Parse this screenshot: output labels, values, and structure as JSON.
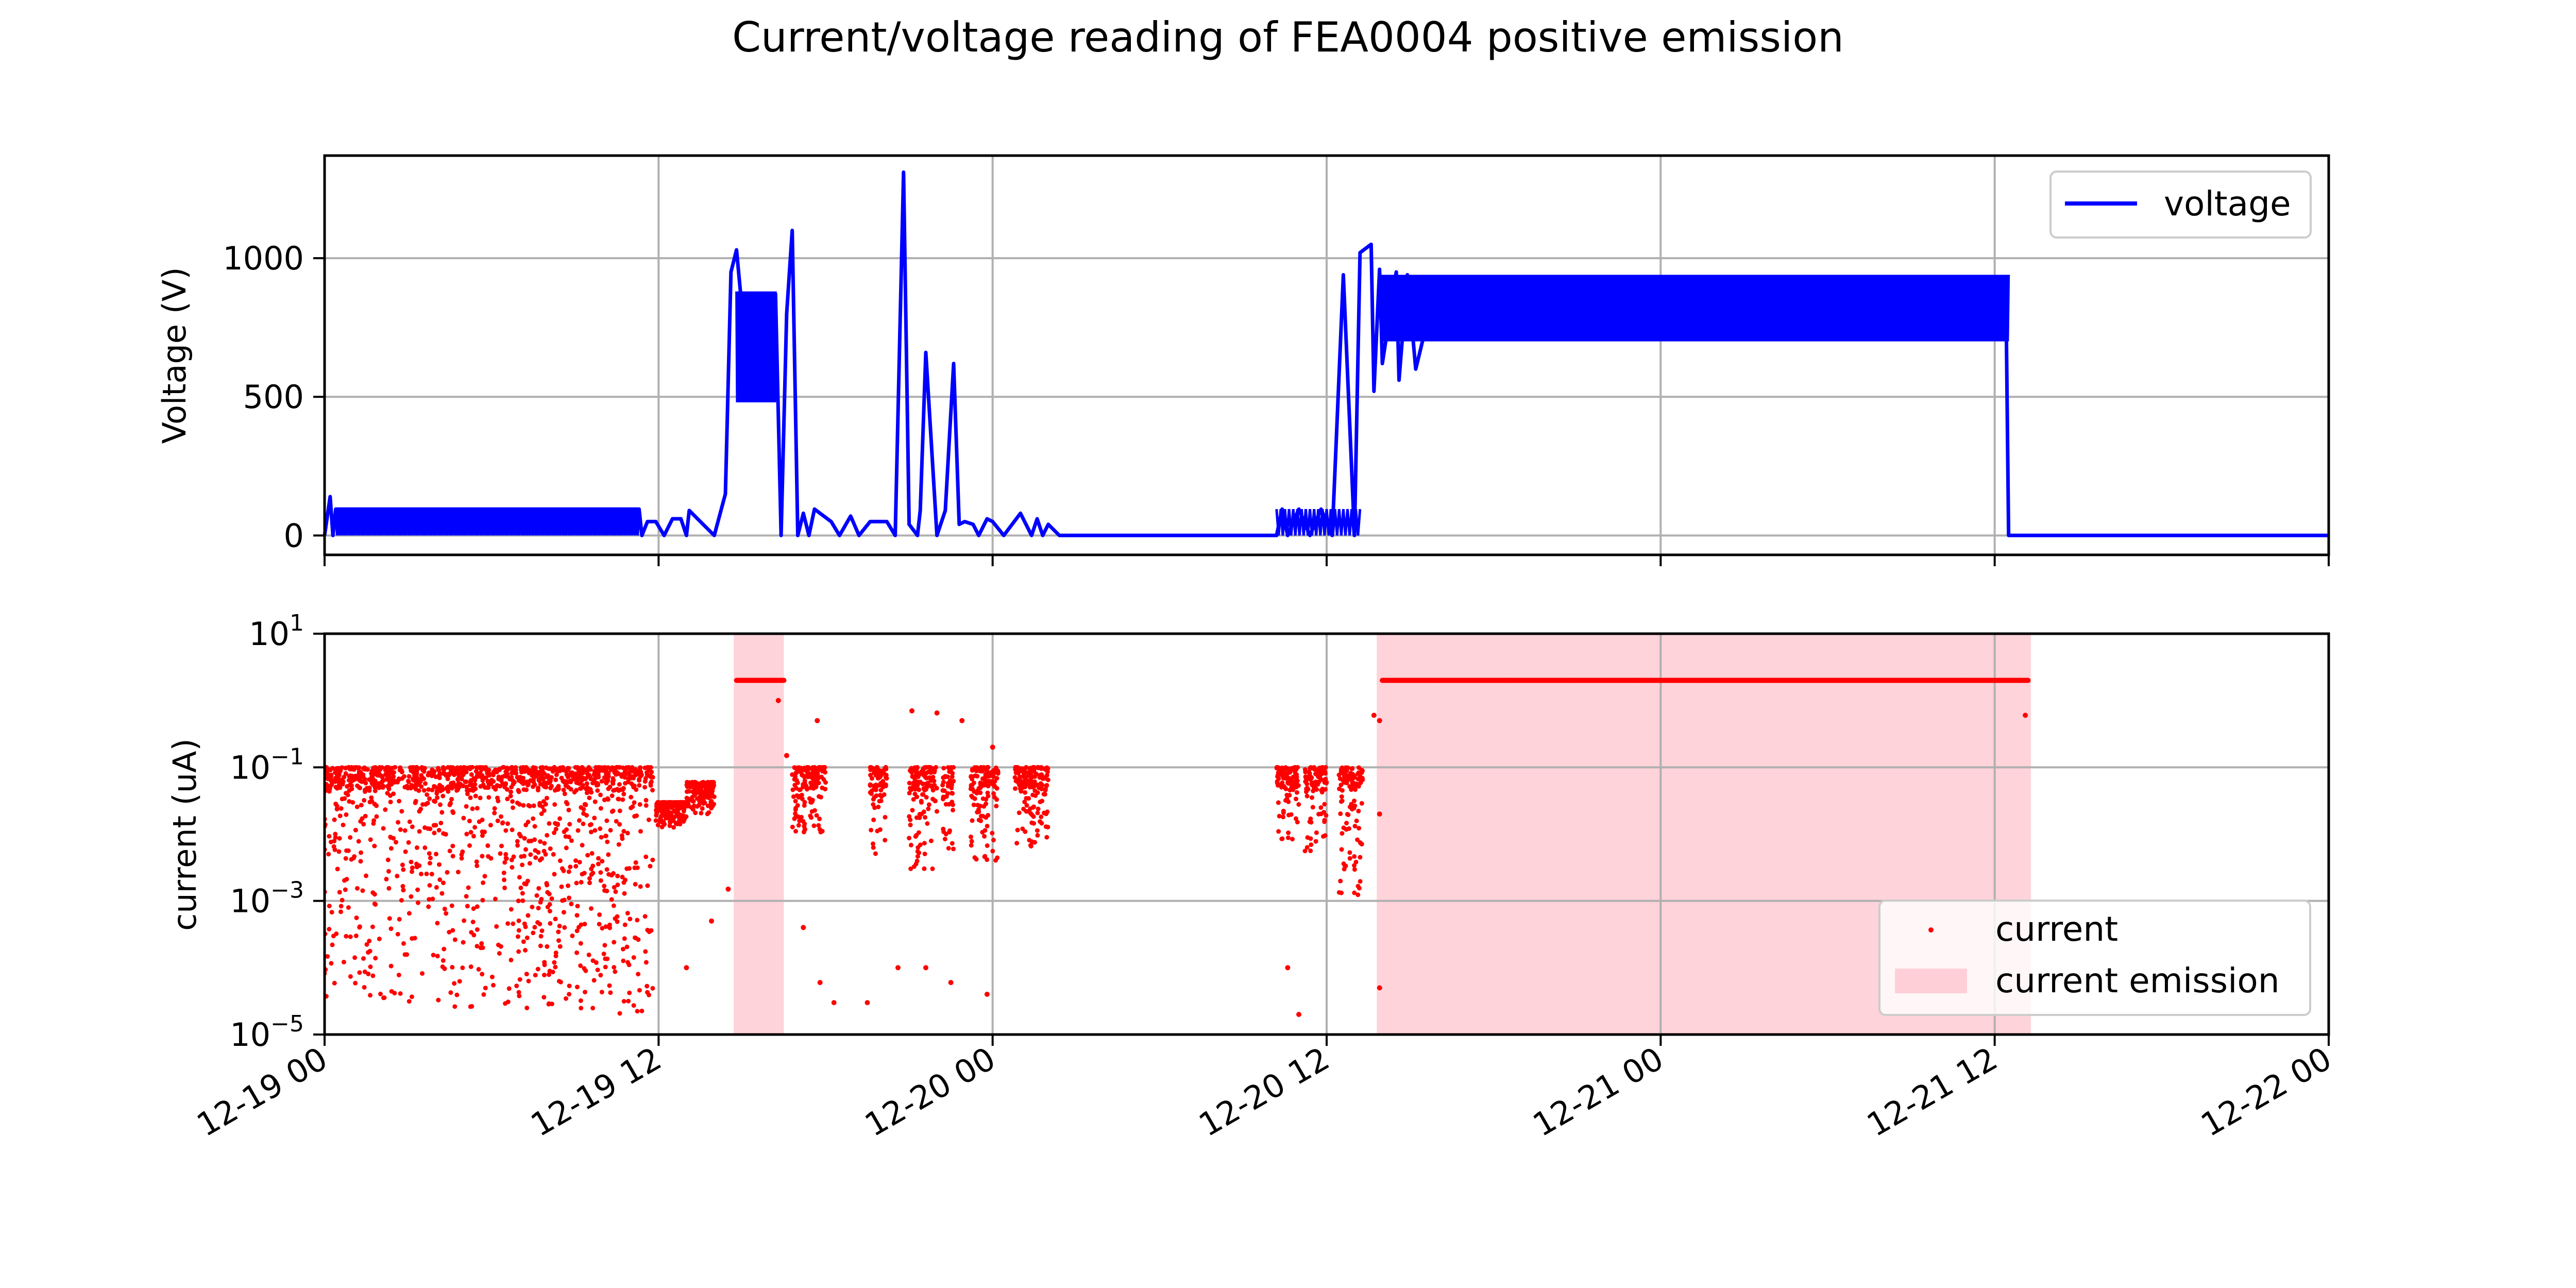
{
  "figure": {
    "title": "Current/voltage reading of FEA0004 positive emission"
  },
  "x_axis": {
    "tick_labels": [
      "12-19 00",
      "12-19 12",
      "12-20 00",
      "12-20 12",
      "12-21 00",
      "12-21 12",
      "12-22 00"
    ],
    "range": [
      "12-19 00",
      "12-22 00"
    ]
  },
  "chart_data": [
    {
      "type": "line",
      "panel": "top",
      "ylabel": "Voltage (V)",
      "ylim": [
        -70,
        1370
      ],
      "yticks": [
        0,
        500,
        1000
      ],
      "ytick_labels": [
        "0",
        "500",
        "1000"
      ],
      "grid": true,
      "legend_position": "upper-right",
      "series": [
        {
          "name": "voltage",
          "color": "#0000ff",
          "x_hours": [
            0,
            0.2,
            0.3,
            0.4,
            11.3,
            11.4,
            11.6,
            11.9,
            12.2,
            12.5,
            12.8,
            13.0,
            13.1,
            14.0,
            14.4,
            14.6,
            14.8,
            15.2,
            15.4,
            15.6,
            16.2,
            16.4,
            16.6,
            16.8,
            17.0,
            17.2,
            17.4,
            17.6,
            18.2,
            18.5,
            18.9,
            19.2,
            19.6,
            20.2,
            20.5,
            20.8,
            21.0,
            21.3,
            21.4,
            21.6,
            22.0,
            22.3,
            22.6,
            22.8,
            23.0,
            23.3,
            23.5,
            23.8,
            24.0,
            24.4,
            25.0,
            25.4,
            25.6,
            25.8,
            26.0,
            26.4,
            28.0,
            32.0,
            34.2,
            34.4,
            34.6,
            35.0,
            35.4,
            35.8,
            36.2,
            36.6,
            37.0,
            37.2,
            37.6,
            37.7,
            37.9,
            38.0,
            38.5,
            38.6,
            38.9,
            39.2,
            40.0,
            42.0,
            44.0,
            46.0,
            47.5,
            48.0,
            50.0,
            52.0,
            54.0,
            56.0,
            58.0,
            60.0,
            60.4,
            60.5,
            60.6,
            64.0,
            72.0
          ],
          "values": [
            0,
            140,
            0,
            95,
            95,
            0,
            50,
            50,
            0,
            60,
            60,
            0,
            90,
            0,
            150,
            950,
            1030,
            600,
            850,
            500,
            870,
            0,
            800,
            1100,
            0,
            80,
            0,
            95,
            50,
            0,
            70,
            0,
            50,
            50,
            0,
            1310,
            40,
            0,
            90,
            660,
            0,
            90,
            620,
            40,
            50,
            40,
            0,
            60,
            50,
            0,
            80,
            0,
            60,
            0,
            40,
            0,
            0,
            0,
            0,
            95,
            0,
            95,
            0,
            95,
            0,
            940,
            0,
            1020,
            1050,
            520,
            960,
            620,
            950,
            560,
            940,
            600,
            930,
            880,
            920,
            850,
            830,
            900,
            880,
            900,
            860,
            880,
            860,
            880,
            900,
            0,
            0,
            0,
            0
          ]
        }
      ]
    },
    {
      "type": "scatter",
      "panel": "bottom",
      "ylabel": "current (uA)",
      "yscale": "log",
      "ylim": [
        1e-05,
        10
      ],
      "yticks": [
        1e-05,
        0.001,
        0.1,
        10
      ],
      "ytick_labels": [
        {
          "base": "10",
          "exp": "−5"
        },
        {
          "base": "10",
          "exp": "−3"
        },
        {
          "base": "10",
          "exp": "−1"
        },
        {
          "base": "10",
          "exp": "1"
        }
      ],
      "grid": true,
      "legend_position": "lower-right",
      "series": [
        {
          "name": "current",
          "color": "#ff0000",
          "clusters": [
            {
              "x": [
                0.0,
                11.4
              ],
              "y_high": 0.1,
              "y_low": 2e-05
            },
            {
              "x": [
                11.5,
                11.8
              ],
              "y_high": 0.1,
              "y_low": 2e-05
            },
            {
              "x": [
                11.9,
                13.0
              ],
              "y_high": 0.03,
              "y_low": 0.012
            },
            {
              "x": [
                13.0,
                14.0
              ],
              "y_high": 0.06,
              "y_low": 0.02
            },
            {
              "x": [
                16.8,
                18.0
              ],
              "y_high": 0.1,
              "y_low": 0.01
            },
            {
              "x": [
                19.6,
                20.2
              ],
              "y_high": 0.1,
              "y_low": 0.005
            },
            {
              "x": [
                21.0,
                22.0
              ],
              "y_high": 0.1,
              "y_low": 0.003
            },
            {
              "x": [
                22.2,
                22.6
              ],
              "y_high": 0.1,
              "y_low": 0.005
            },
            {
              "x": [
                23.2,
                24.2
              ],
              "y_high": 0.1,
              "y_low": 0.004
            },
            {
              "x": [
                24.8,
                26.0
              ],
              "y_high": 0.1,
              "y_low": 0.006
            },
            {
              "x": [
                34.2,
                35.0
              ],
              "y_high": 0.1,
              "y_low": 0.008
            },
            {
              "x": [
                35.2,
                36.0
              ],
              "y_high": 0.1,
              "y_low": 0.005
            },
            {
              "x": [
                36.4,
                37.3
              ],
              "y_high": 0.1,
              "y_low": 0.001
            }
          ],
          "plateaus": [
            {
              "x": [
                14.8,
                16.5
              ],
              "y": 2.0
            },
            {
              "x": [
                38.0,
                61.2
              ],
              "y": 2.0
            }
          ],
          "outliers": [
            {
              "x": 16.3,
              "y": 1.0
            },
            {
              "x": 16.6,
              "y": 0.15
            },
            {
              "x": 17.7,
              "y": 0.5
            },
            {
              "x": 21.1,
              "y": 0.7
            },
            {
              "x": 22.0,
              "y": 0.65
            },
            {
              "x": 22.9,
              "y": 0.5
            },
            {
              "x": 24.0,
              "y": 0.2
            },
            {
              "x": 13.0,
              "y": 0.0001
            },
            {
              "x": 13.9,
              "y": 0.0005
            },
            {
              "x": 14.5,
              "y": 0.0015
            },
            {
              "x": 17.2,
              "y": 0.0004
            },
            {
              "x": 17.8,
              "y": 6e-05
            },
            {
              "x": 18.3,
              "y": 3e-05
            },
            {
              "x": 19.5,
              "y": 3e-05
            },
            {
              "x": 20.6,
              "y": 0.0001
            },
            {
              "x": 21.6,
              "y": 0.0001
            },
            {
              "x": 22.5,
              "y": 6e-05
            },
            {
              "x": 23.8,
              "y": 4e-05
            },
            {
              "x": 35.0,
              "y": 2e-05
            },
            {
              "x": 34.6,
              "y": 0.0001
            },
            {
              "x": 37.9,
              "y": 0.5
            },
            {
              "x": 37.7,
              "y": 0.6
            },
            {
              "x": 37.9,
              "y": 0.02
            },
            {
              "x": 37.9,
              "y": 5e-05
            },
            {
              "x": 61.1,
              "y": 0.6
            }
          ]
        }
      ],
      "shaded_regions": [
        {
          "name": "current emission",
          "color": "#ffb6c1",
          "x": [
            14.7,
            16.5
          ]
        },
        {
          "name": "current emission",
          "color": "#ffb6c1",
          "x": [
            37.8,
            61.3
          ]
        }
      ],
      "legend_entries": [
        "current",
        "current emission"
      ]
    }
  ]
}
